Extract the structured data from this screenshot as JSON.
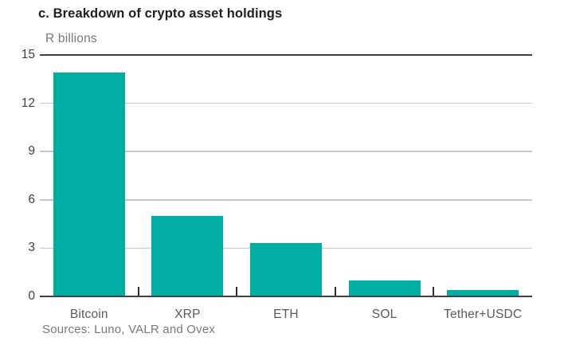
{
  "figure": {
    "title": "c. Breakdown of crypto asset holdings",
    "unit_label": "R billions",
    "sources": "Sources: Luno, VALR and Ovex"
  },
  "chart_data": {
    "type": "bar",
    "title": "c. Breakdown of crypto asset holdings",
    "ylabel": "R billions",
    "xlabel": "",
    "categories": [
      "Bitcoin",
      "XRP",
      "ETH",
      "SOL",
      "Tether+USDC"
    ],
    "values": [
      13.9,
      5.0,
      3.3,
      1.0,
      0.4
    ],
    "ylim": [
      0,
      15
    ],
    "yticks": [
      0,
      3,
      6,
      9,
      12,
      15
    ],
    "grid": "horizontal",
    "legend": "none",
    "source_note": "Sources: Luno, VALR and Ovex",
    "colors": {
      "bar": "#00aea4",
      "axis_line": "#414042",
      "gridline": "#c6c7c9",
      "tick_mark": "#2e2e30",
      "y_tick_label": "#414042",
      "category_label": "#58595b",
      "unit_label": "#77787b",
      "source_text": "#77787b",
      "title": "#1f1f21"
    }
  }
}
